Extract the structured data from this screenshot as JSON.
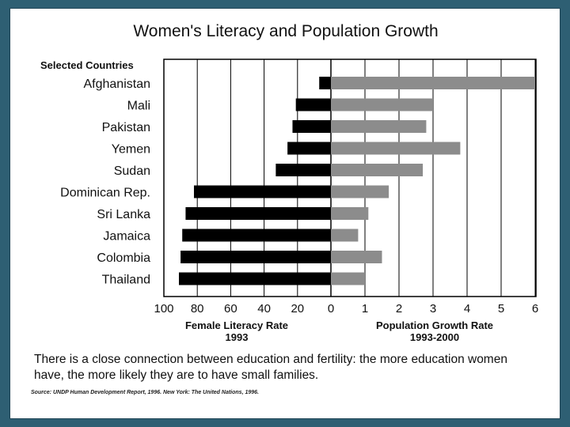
{
  "chart_data": {
    "type": "bar",
    "title": "Women's Literacy and Population Growth",
    "category_header": "Selected Countries",
    "categories": [
      "Afghanistan",
      "Mali",
      "Pakistan",
      "Yemen",
      "Sudan",
      "Dominican Rep.",
      "Sri Lanka",
      "Jamaica",
      "Colombia",
      "Thailand"
    ],
    "series": [
      {
        "values": [
          7,
          21,
          23,
          26,
          33,
          82,
          87,
          89,
          90,
          91
        ],
        "axis_label": [
          "Female Literacy Rate",
          "1993"
        ],
        "xlim": [
          100,
          0
        ],
        "ticks": [
          "100",
          "80",
          "60",
          "40",
          "20",
          "0"
        ],
        "color": "#000000"
      },
      {
        "values": [
          6.0,
          3.0,
          2.8,
          3.8,
          2.7,
          1.7,
          1.1,
          0.8,
          1.5,
          1.0
        ],
        "axis_label": [
          "Population Growth Rate",
          "1993-2000"
        ],
        "xlim": [
          0,
          6
        ],
        "ticks": [
          "1",
          "2",
          "3",
          "4",
          "5",
          "6"
        ],
        "color": "#8c8c8c"
      }
    ],
    "grid": true
  },
  "caption": "There is a close connection between education and fertility: the more education women have, the more likely they are to have small families.",
  "source": "Source: UNDP Human Development Report, 1996. New York: The United Nations, 1996."
}
